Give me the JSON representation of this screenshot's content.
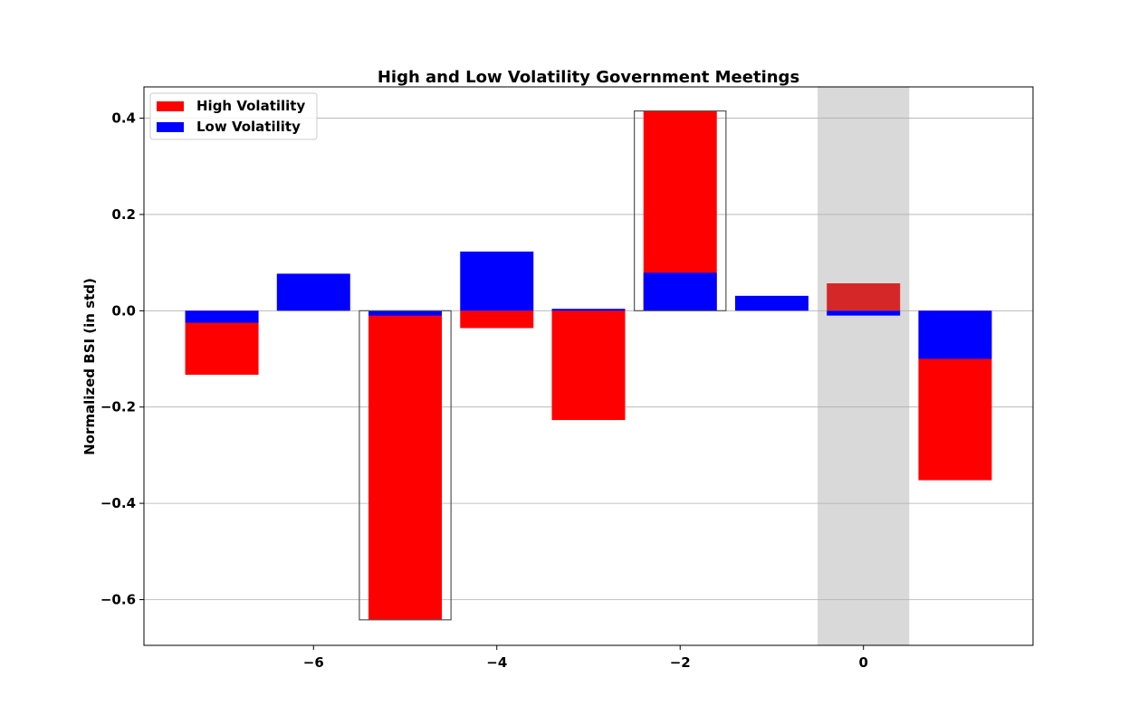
{
  "chart_data": {
    "type": "bar",
    "title": "High and Low Volatility Government Meetings",
    "xlabel": "",
    "ylabel": "Normalized BSI (in std)",
    "x": [
      -7,
      -6,
      -5,
      -4,
      -3,
      -2,
      -1,
      0,
      1
    ],
    "xlim": [
      -7.85,
      1.85
    ],
    "ylim": [
      -0.695,
      0.465
    ],
    "xticks": [
      -6,
      -4,
      -2,
      0
    ],
    "xtick_labels": [
      "−6",
      "−4",
      "−2",
      "0"
    ],
    "yticks": [
      -0.6,
      -0.4,
      -0.2,
      0.0,
      0.2,
      0.4
    ],
    "ytick_labels": [
      "−0.6",
      "−0.4",
      "−0.2",
      "0.0",
      "0.2",
      "0.4"
    ],
    "grid": "horizontal",
    "legend_position": "top-left",
    "series": [
      {
        "name": "High Volatility",
        "color": "#ff0000",
        "values": [
          -0.133,
          null,
          -0.642,
          -0.036,
          -0.227,
          0.415,
          null,
          0.057,
          -0.352
        ]
      },
      {
        "name": "Low Volatility",
        "color": "#0000ff",
        "values": [
          -0.025,
          0.077,
          -0.01,
          0.123,
          0.004,
          0.079,
          0.031,
          -0.01,
          -0.1
        ]
      }
    ],
    "shaded_region": {
      "x_from": -0.5,
      "x_to": 0.5,
      "color": "#d9d9d9"
    },
    "highlight_boxes": [
      {
        "x": -5,
        "y_from": -0.642,
        "y_to": 0.0
      },
      {
        "x": -2,
        "y_from": 0.0,
        "y_to": 0.415
      }
    ],
    "colors": {
      "high_in_shaded": "#d62728"
    }
  }
}
